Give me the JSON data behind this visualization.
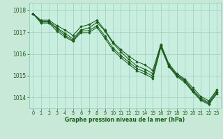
{
  "title": "Graphe pression niveau de la mer (hPa)",
  "bg_color": "#c8e8d8",
  "plot_bg_color": "#c8eee0",
  "grid_color": "#a0ccbc",
  "line_color": "#1a5c1a",
  "marker_color": "#1a5c1a",
  "xlim": [
    -0.5,
    23.5
  ],
  "ylim": [
    1013.5,
    1018.35
  ],
  "yticks": [
    1014,
    1015,
    1016,
    1017,
    1018
  ],
  "xticks": [
    0,
    1,
    2,
    3,
    4,
    5,
    6,
    7,
    8,
    9,
    10,
    11,
    12,
    13,
    14,
    15,
    16,
    17,
    18,
    19,
    20,
    21,
    22,
    23
  ],
  "series": [
    [
      1017.85,
      1017.55,
      1017.55,
      1017.3,
      1017.1,
      1016.85,
      1017.25,
      1017.35,
      1017.55,
      1017.1,
      1016.55,
      1016.2,
      1015.9,
      1015.65,
      1015.5,
      1015.25,
      1016.45,
      1015.55,
      1015.1,
      1014.85,
      1014.45,
      1014.05,
      1013.85,
      1014.35
    ],
    [
      1017.85,
      1017.5,
      1017.5,
      1017.2,
      1016.95,
      1016.7,
      1017.1,
      1017.2,
      1017.45,
      1017.05,
      1016.5,
      1016.1,
      1015.75,
      1015.45,
      1015.3,
      1015.1,
      1016.4,
      1015.5,
      1015.05,
      1014.8,
      1014.35,
      1013.97,
      1013.78,
      1014.28
    ],
    [
      1017.85,
      1017.47,
      1017.47,
      1017.15,
      1016.85,
      1016.63,
      1017.05,
      1017.07,
      1017.3,
      1016.82,
      1016.28,
      1015.93,
      1015.63,
      1015.33,
      1015.18,
      1014.98,
      1016.36,
      1015.46,
      1015.01,
      1014.75,
      1014.3,
      1013.92,
      1013.73,
      1014.22
    ],
    [
      1017.85,
      1017.42,
      1017.42,
      1017.05,
      1016.78,
      1016.58,
      1016.98,
      1016.98,
      1017.22,
      1016.72,
      1016.18,
      1015.83,
      1015.53,
      1015.23,
      1015.08,
      1014.88,
      1016.3,
      1015.42,
      1014.96,
      1014.7,
      1014.25,
      1013.87,
      1013.68,
      1014.17
    ]
  ]
}
